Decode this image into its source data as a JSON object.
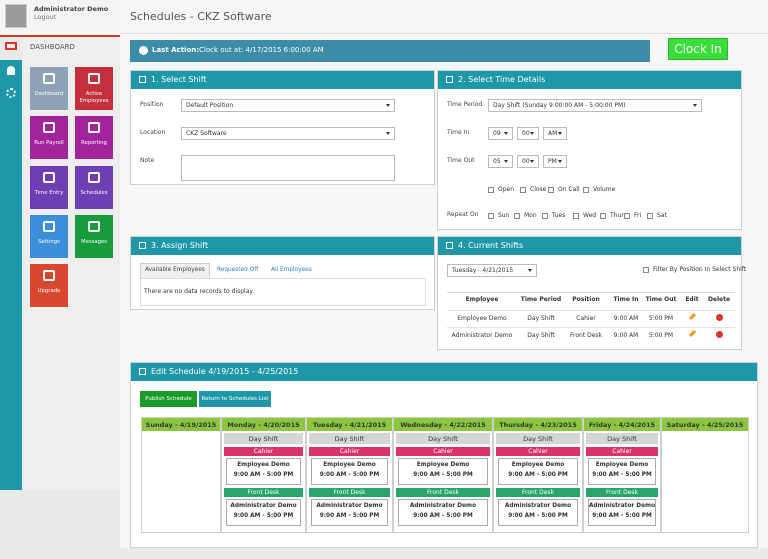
{
  "user": {
    "name": "Administrator Demo",
    "logout": "Logout"
  },
  "sidebar": {
    "section": "DASHBOARD",
    "tiles": [
      {
        "label": "Dashboard",
        "color": "#8da2b5"
      },
      {
        "label": "Active Employees",
        "color": "#c62f3e"
      },
      {
        "label": "Run Payroll",
        "color": "#a3239c"
      },
      {
        "label": "Reporting",
        "color": "#a3239c"
      },
      {
        "label": "Time Entry",
        "color": "#6d3fb3"
      },
      {
        "label": "Schedules",
        "color": "#6d3fb3"
      },
      {
        "label": "Settings",
        "color": "#3b8fd9"
      },
      {
        "label": "Messages",
        "color": "#169c3c"
      },
      {
        "label": "Upgrade",
        "color": "#d9472f"
      }
    ]
  },
  "header": {
    "title": "Schedules - CKZ Software"
  },
  "last_action": {
    "label": "Last Action:",
    "text": "Clock out at: 4/17/2015 6:00:00 AM"
  },
  "clock_in": "Clock In",
  "select_shift": {
    "title": "1. Select Shift",
    "position": {
      "label": "Position",
      "value": "Default Position"
    },
    "location": {
      "label": "Location",
      "value": "CKZ Software"
    },
    "note": {
      "label": "Note"
    }
  },
  "time_details": {
    "title": "2. Select Time Details",
    "time_period": {
      "label": "Time Period",
      "value": "Day Shift (Sunday 9:00:00 AM - 5:00:00 PM)"
    },
    "time_in": {
      "label": "Time In",
      "hour": "09",
      "minute": "00",
      "ampm": "AM"
    },
    "time_out": {
      "label": "Time Out",
      "hour": "05",
      "minute": "00",
      "ampm": "PM"
    },
    "options": [
      "Open",
      "Close",
      "On Call",
      "Volume"
    ],
    "repeat": {
      "label": "Repeat On",
      "days": [
        "Sun",
        "Mon",
        "Tues",
        "Wed",
        "Thur",
        "Fri",
        "Sat"
      ]
    }
  },
  "assign_shift": {
    "title": "3. Assign Shift",
    "tabs": [
      "Available Employees",
      "Requested Off",
      "All Employees"
    ],
    "empty": "There are no data records to display."
  },
  "current_shifts": {
    "title": "4. Current Shifts",
    "day": "Tuesday - 4/21/2015",
    "filter": "Filter By Position In Select Shift",
    "columns": [
      "Employee",
      "Time Period",
      "Position",
      "Time In",
      "Time Out",
      "Edit",
      "Delete"
    ],
    "rows": [
      [
        "Employee Demo",
        "Day Shift",
        "Cahier",
        "9:00 AM",
        "5:00 PM"
      ],
      [
        "Administrator Demo",
        "Day Shift",
        "Front Desk",
        "9:00 AM",
        "5:00 PM"
      ]
    ]
  },
  "edit_schedule": {
    "title": "Edit Schedule 4/19/2015 - 4/25/2015",
    "publish": "Publish Schedule",
    "return": "Return to Schedules List",
    "days": [
      {
        "label": "Sunday - 4/19/2015"
      },
      {
        "label": "Monday - 4/20/2015",
        "shift": "Day Shift",
        "positions": [
          {
            "name": "Cahier",
            "employee": "Employee Demo",
            "time": "9:00 AM - 5:00 PM"
          },
          {
            "name": "Front Desk",
            "employee": "Administrator Demo",
            "time": "9:00 AM - 5:00 PM"
          }
        ]
      },
      {
        "label": "Tuesday - 4/21/2015",
        "shift": "Day Shift",
        "positions": [
          {
            "name": "Cahier",
            "employee": "Employee Demo",
            "time": "9:00 AM - 5:00 PM"
          },
          {
            "name": "Front Desk",
            "employee": "Administrator Demo",
            "time": "9:00 AM - 5:00 PM"
          }
        ]
      },
      {
        "label": "Wednesday - 4/22/2015",
        "shift": "Day Shift",
        "positions": [
          {
            "name": "Cahier",
            "employee": "Employee Demo",
            "time": "9:00 AM - 5:00 PM"
          },
          {
            "name": "Front Desk",
            "employee": "Administrator Demo",
            "time": "9:00 AM - 5:00 PM"
          }
        ]
      },
      {
        "label": "Thursday - 4/23/2015",
        "shift": "Day Shift",
        "positions": [
          {
            "name": "Cahier",
            "employee": "Employee Demo",
            "time": "9:00 AM - 5:00 PM"
          },
          {
            "name": "Front Desk",
            "employee": "Administrator Demo",
            "time": "9:00 AM - 5:00 PM"
          }
        ]
      },
      {
        "label": "Friday - 4/24/2015",
        "shift": "Day Shift",
        "positions": [
          {
            "name": "Cahier",
            "employee": "Employee Demo",
            "time": "9:00 AM - 5:00 PM"
          },
          {
            "name": "Front Desk",
            "employee": "Administrator Demo",
            "time": "9:00 AM - 5:00 PM"
          }
        ]
      },
      {
        "label": "Saturday - 4/25/2015"
      }
    ]
  }
}
